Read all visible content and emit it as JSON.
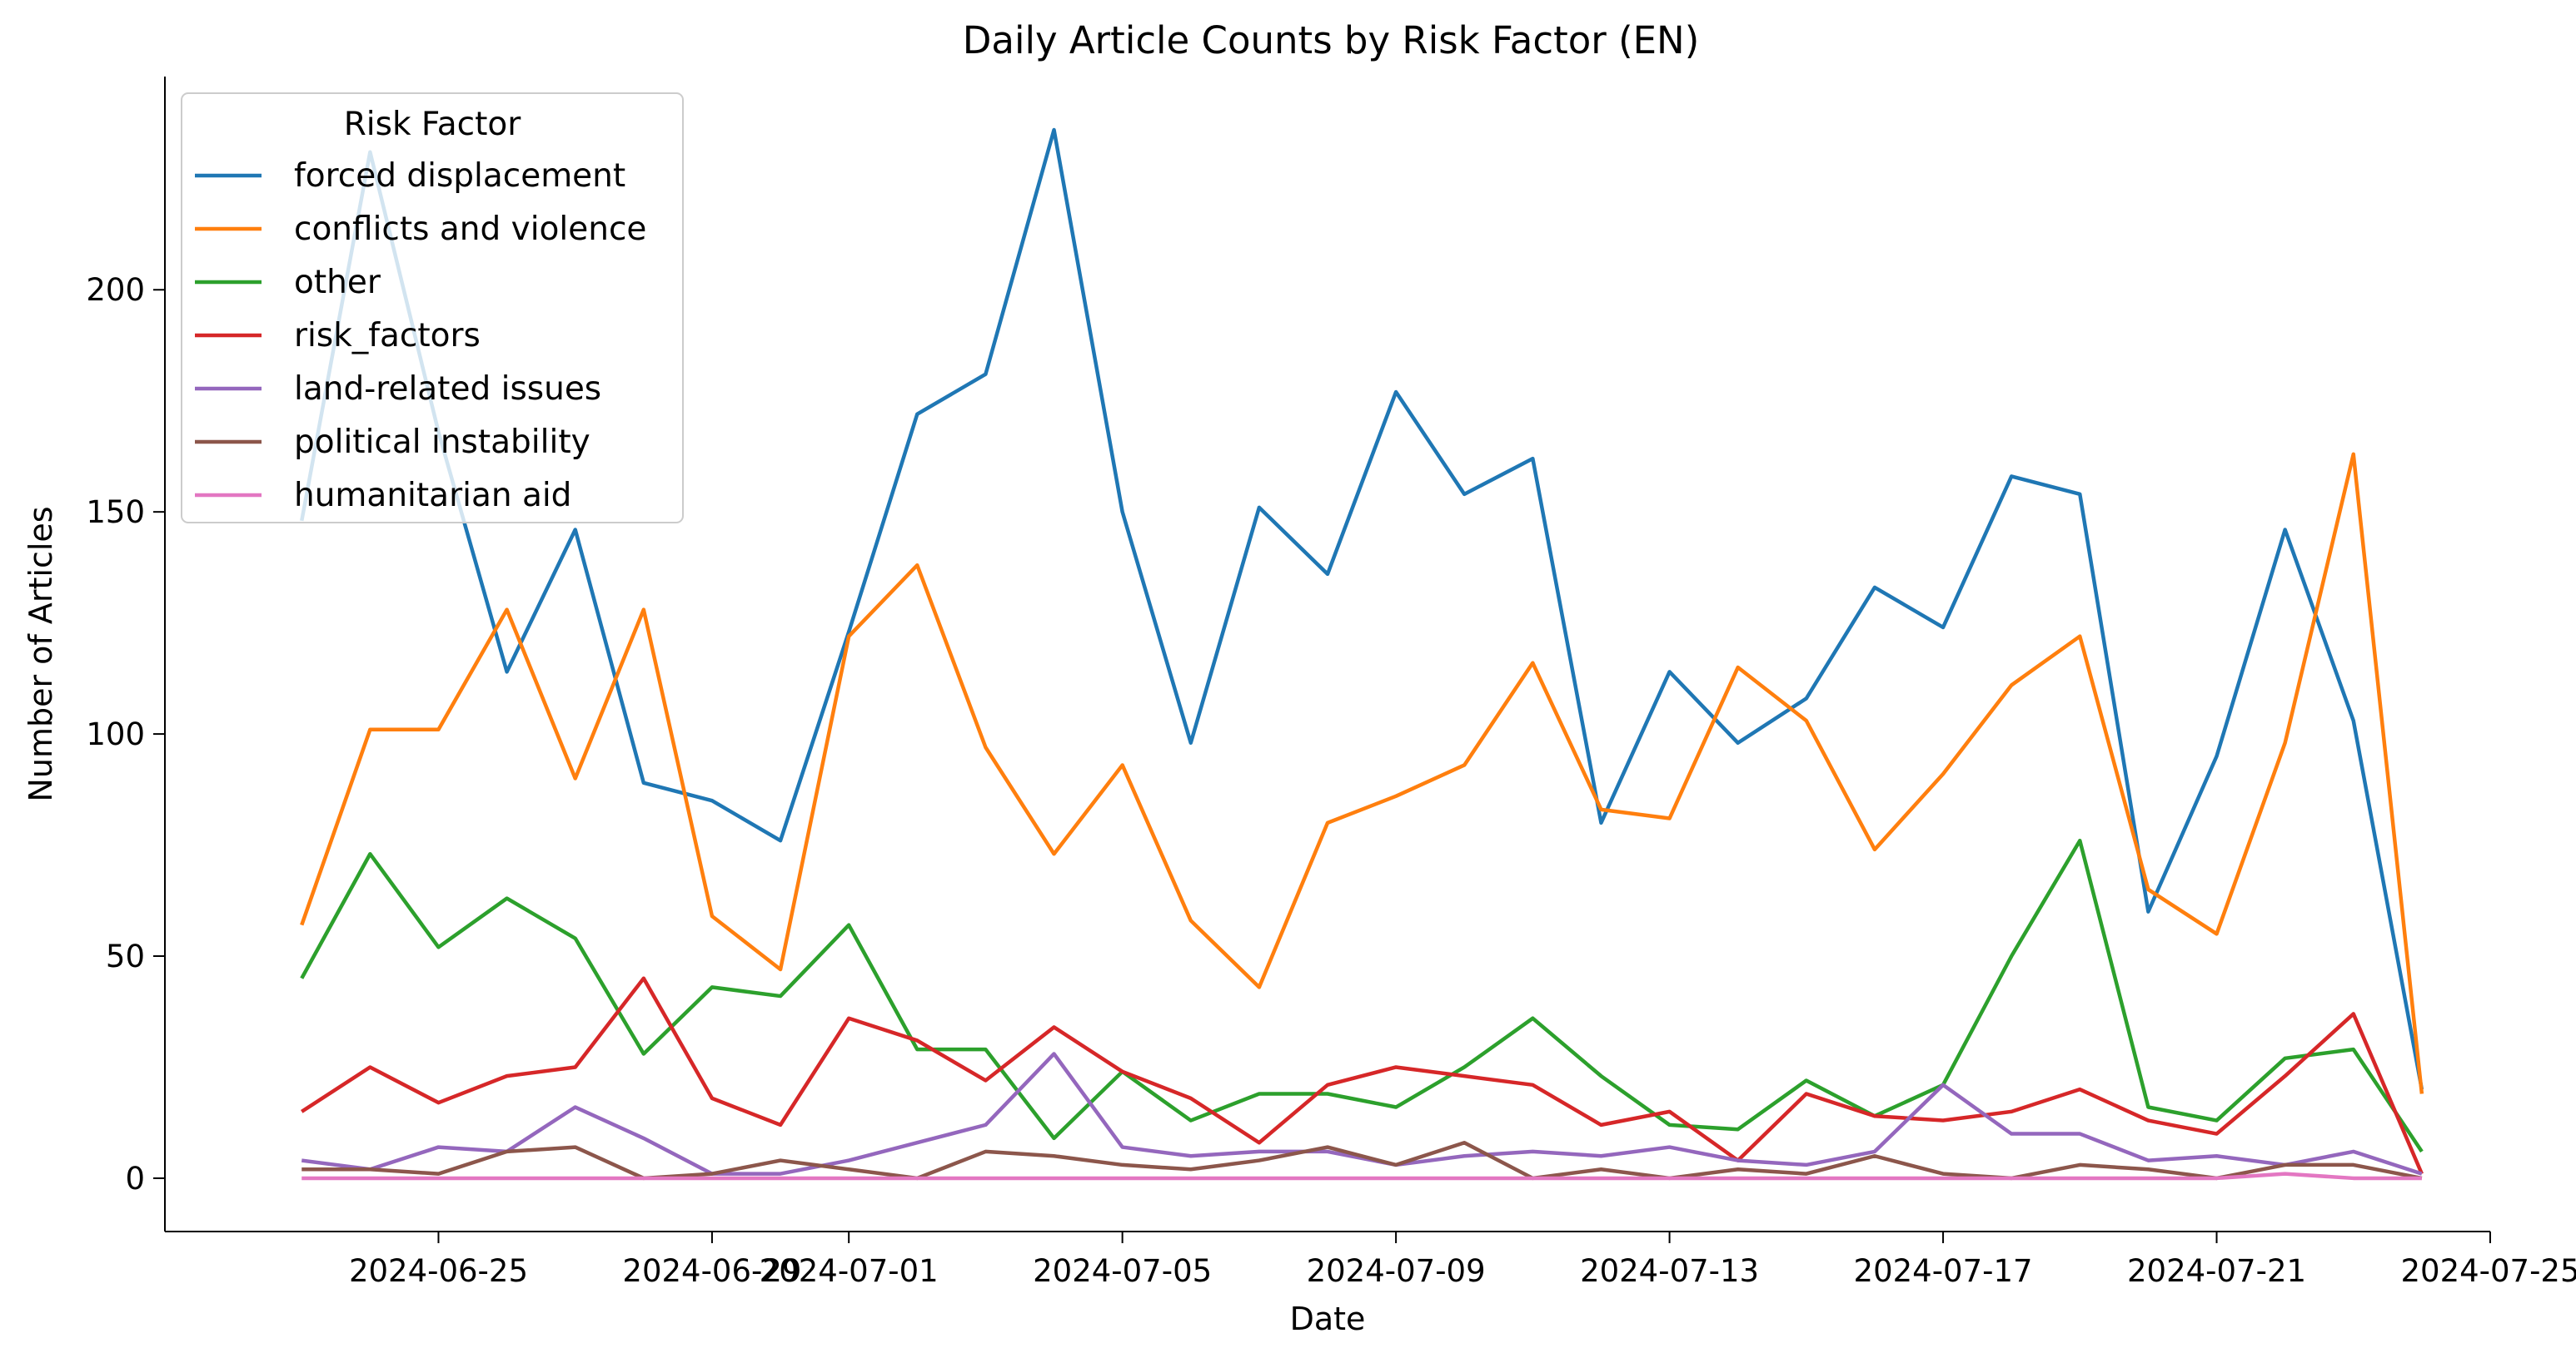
{
  "chart_data": {
    "type": "line",
    "title": "Daily Article Counts by Risk Factor (EN)",
    "xlabel": "Date",
    "ylabel": "Number of Articles",
    "x_axis_kind": "date",
    "xlim": [
      "2024-06-21",
      "2024-07-25"
    ],
    "ylim": [
      -12,
      248
    ],
    "x_ticks": [
      "2024-06-25",
      "2024-06-29",
      "2024-07-01",
      "2024-07-05",
      "2024-07-09",
      "2024-07-13",
      "2024-07-17",
      "2024-07-21",
      "2024-07-25"
    ],
    "y_ticks": [
      0,
      50,
      100,
      150,
      200
    ],
    "grid": false,
    "legend": {
      "title": "Risk Factor",
      "placement": "top-left"
    },
    "x": [
      "2024-06-23",
      "2024-06-24",
      "2024-06-25",
      "2024-06-26",
      "2024-06-27",
      "2024-06-28",
      "2024-06-29",
      "2024-06-30",
      "2024-07-01",
      "2024-07-02",
      "2024-07-03",
      "2024-07-04",
      "2024-07-05",
      "2024-07-06",
      "2024-07-07",
      "2024-07-08",
      "2024-07-09",
      "2024-07-10",
      "2024-07-11",
      "2024-07-12",
      "2024-07-13",
      "2024-07-14",
      "2024-07-15",
      "2024-07-16",
      "2024-07-17",
      "2024-07-18",
      "2024-07-19",
      "2024-07-20",
      "2024-07-21",
      "2024-07-22",
      "2024-07-23",
      "2024-07-24"
    ],
    "series": [
      {
        "name": "forced displacement",
        "color": "#1f77b4",
        "values": [
          148,
          231,
          168,
          114,
          146,
          89,
          85,
          76,
          123,
          172,
          181,
          236,
          150,
          98,
          151,
          136,
          177,
          154,
          162,
          80,
          114,
          98,
          108,
          133,
          124,
          158,
          154,
          60,
          95,
          146,
          103,
          20
        ]
      },
      {
        "name": "conflicts and violence",
        "color": "#ff7f0e",
        "values": [
          57,
          101,
          101,
          128,
          90,
          128,
          59,
          47,
          122,
          138,
          97,
          73,
          93,
          58,
          43,
          80,
          86,
          93,
          116,
          83,
          81,
          115,
          103,
          74,
          91,
          111,
          122,
          65,
          55,
          98,
          163,
          19
        ]
      },
      {
        "name": "other",
        "color": "#2ca02c",
        "values": [
          45,
          73,
          52,
          63,
          54,
          28,
          43,
          41,
          57,
          29,
          29,
          9,
          24,
          13,
          19,
          19,
          16,
          25,
          36,
          23,
          12,
          11,
          22,
          14,
          21,
          50,
          76,
          16,
          13,
          27,
          29,
          6
        ]
      },
      {
        "name": "risk_factors",
        "color": "#d62728",
        "values": [
          15,
          25,
          17,
          23,
          25,
          45,
          18,
          12,
          36,
          31,
          22,
          34,
          24,
          18,
          8,
          21,
          25,
          23,
          21,
          12,
          15,
          4,
          19,
          14,
          13,
          15,
          20,
          13,
          10,
          23,
          37,
          1
        ]
      },
      {
        "name": "land-related issues",
        "color": "#9467bd",
        "values": [
          4,
          2,
          7,
          6,
          16,
          9,
          1,
          1,
          4,
          8,
          12,
          28,
          7,
          5,
          6,
          6,
          3,
          5,
          6,
          5,
          7,
          4,
          3,
          6,
          21,
          10,
          10,
          4,
          5,
          3,
          6,
          1
        ]
      },
      {
        "name": "political instability",
        "color": "#8c564b",
        "values": [
          2,
          2,
          1,
          6,
          7,
          0,
          1,
          4,
          2,
          0,
          6,
          5,
          3,
          2,
          4,
          7,
          3,
          8,
          0,
          2,
          0,
          2,
          1,
          5,
          1,
          0,
          3,
          2,
          0,
          3,
          3,
          0
        ]
      },
      {
        "name": "humanitarian aid",
        "color": "#e377c2",
        "values": [
          0,
          0,
          0,
          0,
          0,
          0,
          0,
          0,
          0,
          0,
          0,
          0,
          0,
          0,
          0,
          0,
          0,
          0,
          0,
          0,
          0,
          0,
          0,
          0,
          0,
          0,
          0,
          0,
          0,
          1,
          0,
          0
        ]
      }
    ]
  }
}
